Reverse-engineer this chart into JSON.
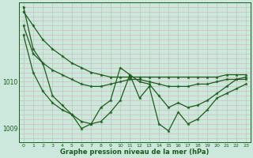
{
  "background_color": "#cce8dd",
  "grid_color": "#aaccbb",
  "line_color": "#1a5c1a",
  "text_color": "#1a5c1a",
  "xlabel": "Graphe pression niveau de la mer (hPa)",
  "ylim": [
    1008.7,
    1011.7
  ],
  "yticks": [
    1009,
    1010
  ],
  "xlim": [
    -0.5,
    23.5
  ],
  "xticks": [
    0,
    1,
    2,
    3,
    4,
    5,
    6,
    7,
    8,
    9,
    10,
    11,
    12,
    13,
    14,
    15,
    16,
    17,
    18,
    19,
    20,
    21,
    22,
    23
  ],
  "series1": [
    1011.5,
    1011.2,
    1010.9,
    1010.7,
    1010.55,
    1010.4,
    1010.3,
    1010.2,
    1010.15,
    1010.1,
    1010.1,
    1010.1,
    1010.1,
    1010.1,
    1010.1,
    1010.1,
    1010.1,
    1010.1,
    1010.1,
    1010.1,
    1010.1,
    1010.15,
    1010.15,
    1010.15
  ],
  "series2": [
    1011.2,
    1010.6,
    1010.4,
    1010.25,
    1010.15,
    1010.05,
    1009.95,
    1009.9,
    1009.9,
    1009.95,
    1010.0,
    1010.05,
    1010.05,
    1010.0,
    1009.95,
    1009.9,
    1009.9,
    1009.9,
    1009.95,
    1009.95,
    1010.0,
    1010.05,
    1010.05,
    1010.05
  ],
  "series3": [
    1011.0,
    1010.2,
    1009.8,
    1009.55,
    1009.4,
    1009.3,
    1009.15,
    1009.1,
    1009.15,
    1009.35,
    1009.6,
    1010.15,
    1010.0,
    1009.95,
    1009.7,
    1009.45,
    1009.55,
    1009.45,
    1009.5,
    1009.6,
    1009.75,
    1009.9,
    1010.05,
    1010.1
  ],
  "series4": [
    1011.6,
    1010.7,
    1010.4,
    1009.7,
    1009.5,
    1009.3,
    1009.0,
    1009.1,
    1009.45,
    1009.6,
    1010.3,
    1010.15,
    1009.65,
    1009.9,
    1009.1,
    1008.95,
    1009.35,
    1009.1,
    1009.2,
    1009.4,
    1009.65,
    1009.75,
    1009.85,
    1009.95
  ]
}
